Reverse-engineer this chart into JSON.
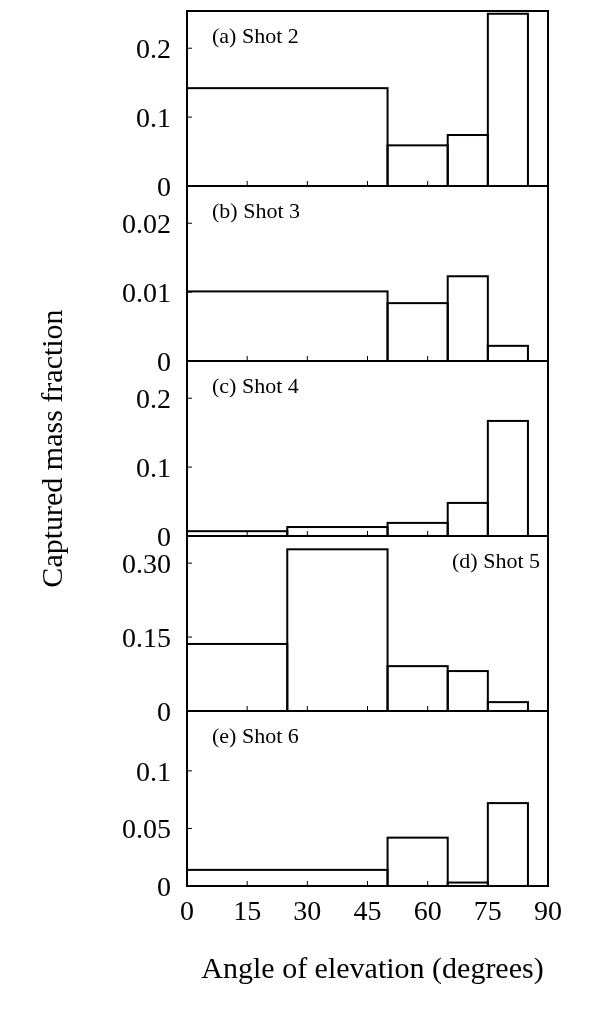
{
  "chart_data": [
    {
      "type": "histogram",
      "title": "(a) Shot 2",
      "bins": [
        0,
        50,
        65,
        75,
        85
      ],
      "values": [
        0.142,
        0.059,
        0.074,
        0.25
      ],
      "xlim": [
        0,
        90
      ],
      "xticks": [
        0,
        15,
        30,
        45,
        60,
        75,
        90
      ],
      "ylim": [
        0,
        0.254
      ],
      "yticks": [
        0,
        0.1,
        0.2
      ],
      "tick_labels": "y"
    },
    {
      "type": "histogram",
      "title": "(b) Shot 3",
      "bins": [
        0,
        50,
        65,
        75,
        85
      ],
      "values": [
        0.0101,
        0.0084,
        0.0123,
        0.0022
      ],
      "xlim": [
        0,
        90
      ],
      "xticks": [
        0,
        15,
        30,
        45,
        60,
        75,
        90
      ],
      "ylim": [
        0,
        0.0254
      ],
      "yticks": [
        0,
        0.01,
        0.02
      ],
      "tick_labels": "y"
    },
    {
      "type": "histogram",
      "title": "(c) Shot 4",
      "ylabel": "Captured mass fraction",
      "bins": [
        0,
        25,
        50,
        65,
        75,
        85
      ],
      "values": [
        0.007,
        0.013,
        0.019,
        0.048,
        0.167
      ],
      "xlim": [
        0,
        90
      ],
      "xticks": [
        0,
        15,
        30,
        45,
        60,
        75,
        90
      ],
      "ylim": [
        0,
        0.254
      ],
      "yticks": [
        0,
        0.1,
        0.2
      ],
      "tick_labels": "y"
    },
    {
      "type": "histogram",
      "title": "(d) Shot 5",
      "bins": [
        0,
        25,
        50,
        65,
        75,
        85
      ],
      "values": [
        0.136,
        0.328,
        0.091,
        0.081,
        0.018
      ],
      "xlim": [
        0,
        90
      ],
      "xticks": [
        0,
        15,
        30,
        45,
        60,
        75,
        90
      ],
      "ylim": [
        0,
        0.355
      ],
      "yticks": [
        0,
        0.15,
        {
          "value": 0.3,
          "label": "0.30"
        }
      ],
      "tick_labels": "y"
    },
    {
      "type": "histogram",
      "title": "(e) Shot 6",
      "xlabel": "Angle of elevation (degrees)",
      "bins": [
        0,
        50,
        65,
        75,
        85
      ],
      "values": [
        0.014,
        0.042,
        0.003,
        0.072
      ],
      "xlim": [
        0,
        90
      ],
      "xticks": [
        0,
        15,
        30,
        45,
        60,
        75,
        90
      ],
      "ylim": [
        0,
        0.152
      ],
      "yticks": [
        0,
        0.05,
        0.1
      ]
    }
  ]
}
